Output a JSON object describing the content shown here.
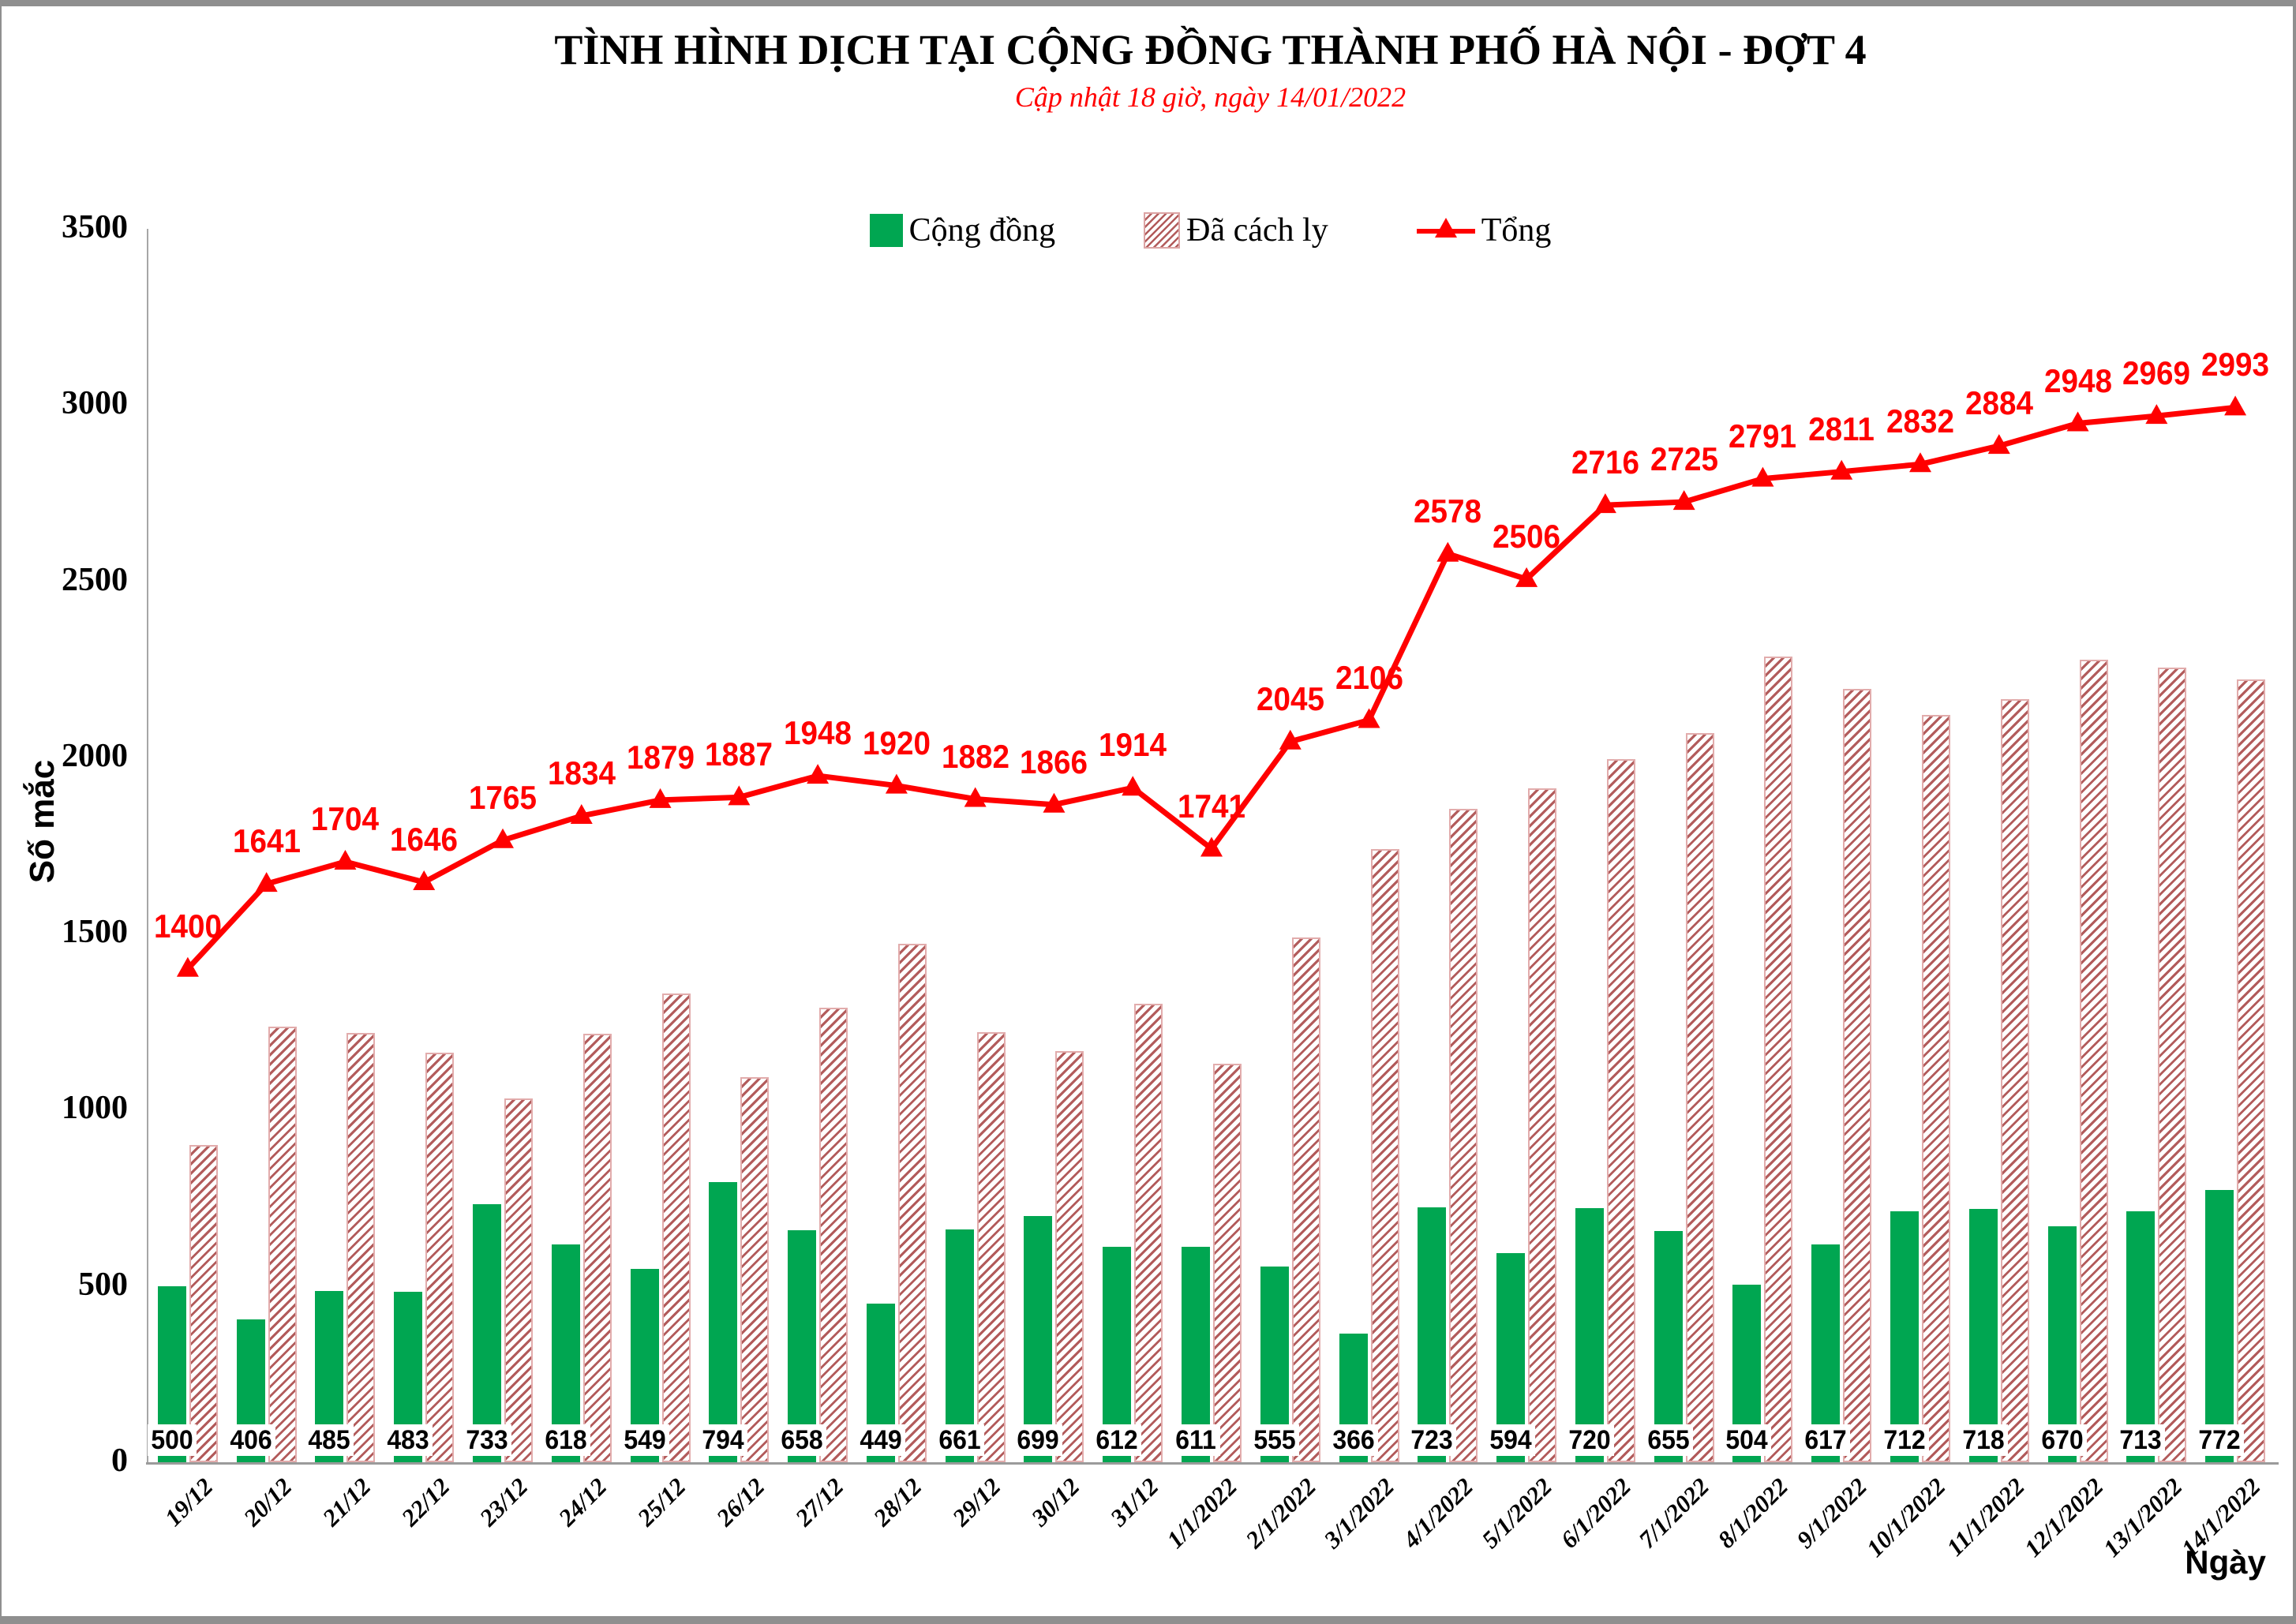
{
  "chart_data": {
    "type": "bar",
    "combo": "bar+line",
    "title": "TÌNH HÌNH DỊCH TẠI CỘNG ĐỒNG THÀNH PHỐ HÀ NỘI - ĐỢT 4",
    "subtitle": "Cập nhật 18 giờ, ngày 14/01/2022",
    "xlabel": "Ngày",
    "ylabel": "Số mắc",
    "ylim": [
      0,
      3500
    ],
    "ytick_step": 500,
    "grid": false,
    "legend_position": "top",
    "categories": [
      "19/12",
      "20/12",
      "21/12",
      "22/12",
      "23/12",
      "24/12",
      "25/12",
      "26/12",
      "27/12",
      "28/12",
      "29/12",
      "30/12",
      "31/12",
      "1/1/2022",
      "2/1/2022",
      "3/1/2022",
      "4/1/2022",
      "5/1/2022",
      "6/1/2022",
      "7/1/2022",
      "8/1/2022",
      "9/1/2022",
      "10/1/2022",
      "11/1/2022",
      "12/1/2022",
      "13/1/2022",
      "14/1/2022"
    ],
    "series": [
      {
        "name": "Cộng đồng",
        "type": "bar",
        "color": "#00A651",
        "data_labels": true,
        "values": [
          500,
          406,
          485,
          483,
          733,
          618,
          549,
          794,
          658,
          449,
          661,
          699,
          612,
          611,
          555,
          366,
          723,
          594,
          720,
          655,
          504,
          617,
          712,
          718,
          670,
          713,
          772
        ]
      },
      {
        "name": "Đã cách ly",
        "type": "bar",
        "style": "hatched",
        "color": "#B25B5B",
        "border_color": "#E2ACAC",
        "data_labels": false,
        "values": [
          900,
          1235,
          1219,
          1163,
          1032,
          1216,
          1330,
          1093,
          1290,
          1471,
          1221,
          1167,
          1302,
          1130,
          1490,
          1740,
          1855,
          1912,
          1996,
          2070,
          2287,
          2194,
          2120,
          2166,
          2278,
          2256,
          2221
        ]
      },
      {
        "name": "Tổng",
        "type": "line",
        "color": "#FF0000",
        "marker": "triangle-up",
        "data_labels": true,
        "values": [
          1400,
          1641,
          1704,
          1646,
          1765,
          1834,
          1879,
          1887,
          1948,
          1920,
          1882,
          1866,
          1914,
          1741,
          2045,
          2106,
          2578,
          2506,
          2716,
          2725,
          2791,
          2811,
          2832,
          2884,
          2948,
          2969,
          2993
        ]
      }
    ],
    "colors": {
      "accent_red": "#FF0000",
      "bar_green": "#00A651",
      "hatch_red": "#B25B5B",
      "hatch_border": "#E2ACAC",
      "axis_gray": "#9B9B9B",
      "frame_gray": "#8F8F8F"
    }
  }
}
